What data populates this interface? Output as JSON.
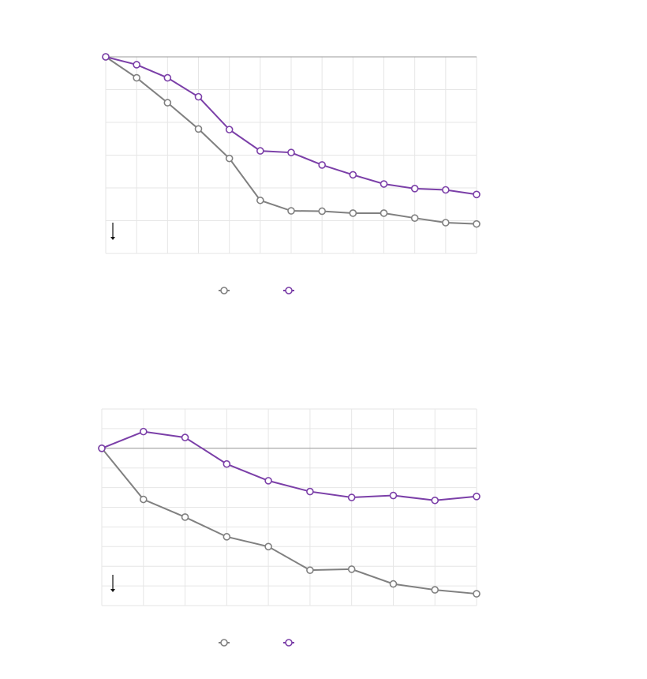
{
  "colors": {
    "gray": "#808080",
    "purple": "#7b3fa8",
    "grid": "#e6e6e6",
    "baseline": "#9a9a9a"
  },
  "faint_caption": "",
  "chart_data": [
    {
      "type": "line",
      "x": [
        0,
        1,
        2,
        3,
        4,
        5,
        6,
        7,
        8,
        9,
        10,
        11,
        12
      ],
      "ylim": [
        -6,
        0
      ],
      "baseline": 0,
      "grid": true,
      "legend": "bottom-center",
      "series": [
        {
          "values": [
            0,
            -0.64,
            -1.4,
            -2.2,
            -3.1,
            -4.38,
            -4.7,
            -4.71,
            -4.77,
            -4.77,
            -4.92,
            -5.06,
            -5.1
          ],
          "color_key": "gray"
        },
        {
          "values": [
            0,
            -0.24,
            -0.64,
            -1.22,
            -2.22,
            -2.87,
            -2.92,
            -3.3,
            -3.6,
            -3.88,
            -4.02,
            -4.06,
            -4.2
          ],
          "color_key": "purple"
        }
      ]
    },
    {
      "type": "line",
      "x": [
        0,
        1,
        2,
        3,
        4,
        5,
        6,
        7,
        8,
        9
      ],
      "ylim": [
        -8,
        2
      ],
      "baseline": 0,
      "grid": true,
      "legend": "bottom-center",
      "series": [
        {
          "values": [
            0,
            -2.6,
            -3.5,
            -4.5,
            -5.0,
            -6.2,
            -6.15,
            -6.9,
            -7.2,
            -7.4
          ],
          "color_key": "gray"
        },
        {
          "values": [
            0,
            0.85,
            0.55,
            -0.8,
            -1.65,
            -2.2,
            -2.5,
            -2.4,
            -2.65,
            -2.45
          ],
          "color_key": "purple"
        }
      ]
    }
  ]
}
